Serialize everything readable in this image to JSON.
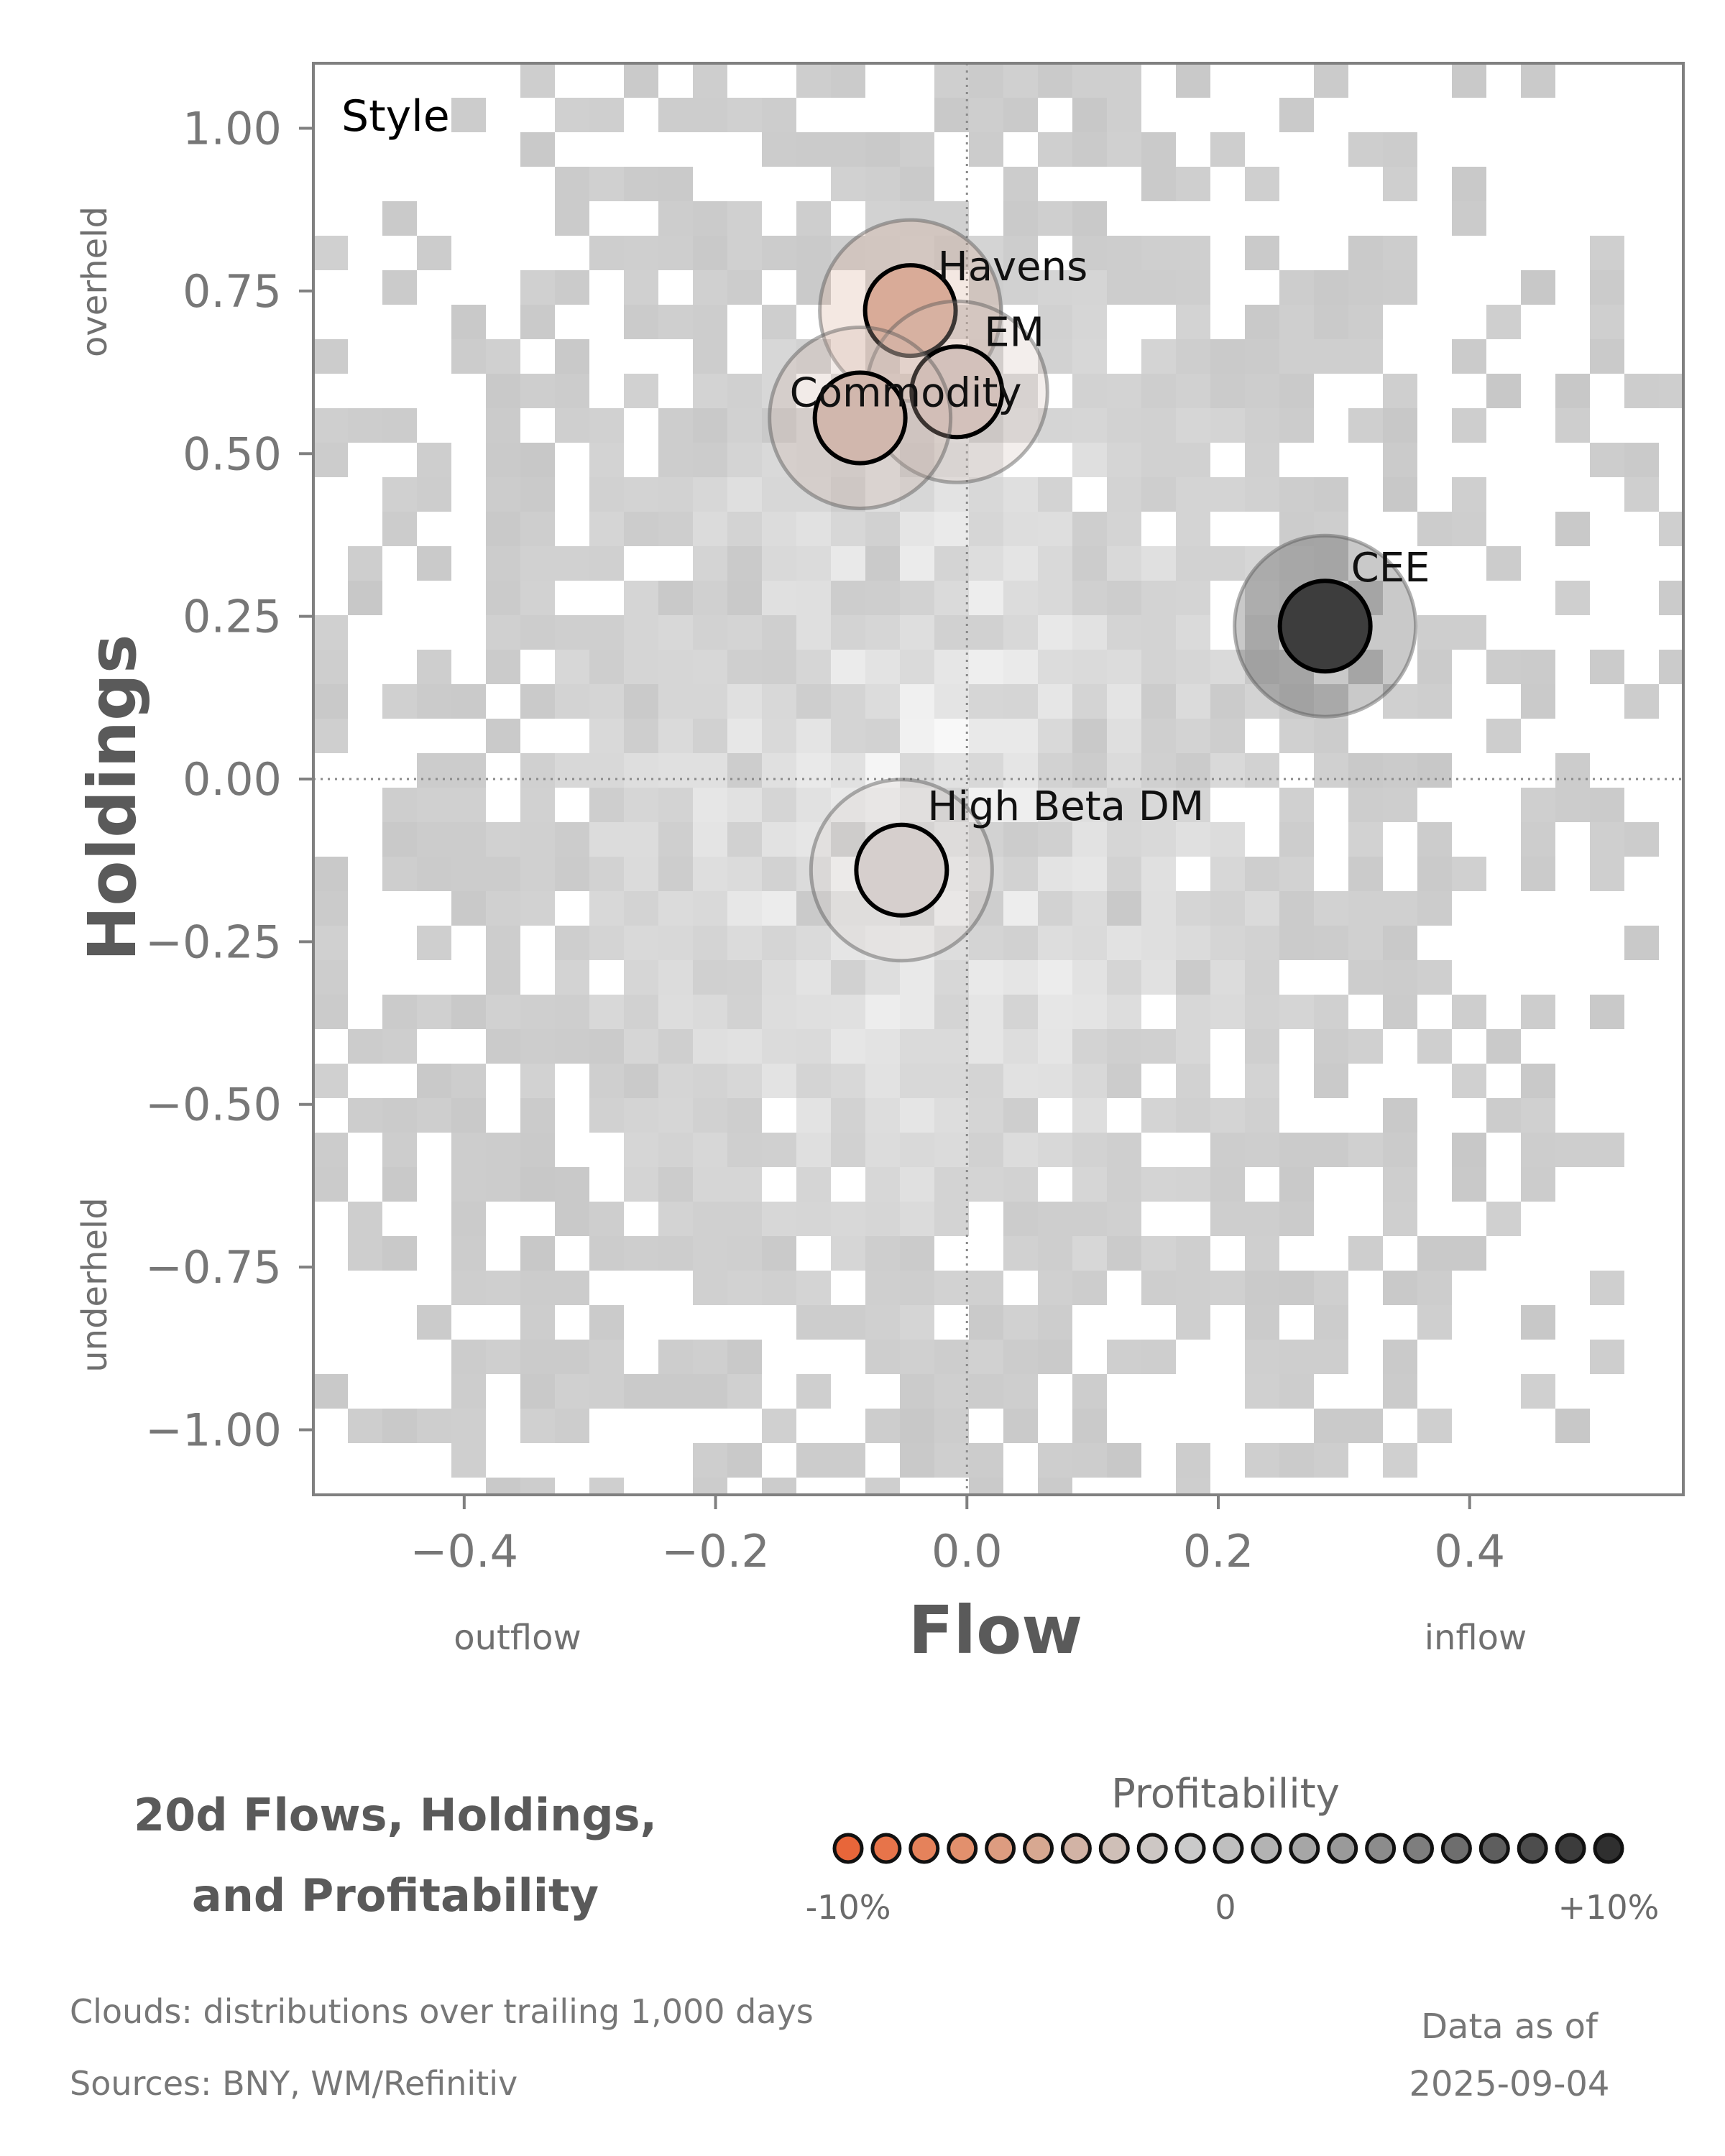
{
  "chart_data": {
    "type": "scatter",
    "panel_label": "Style",
    "xlabel": "Flow",
    "ylabel": "Holdings",
    "xlim": [
      -0.52,
      0.57
    ],
    "ylim": [
      -1.1,
      1.1
    ],
    "x_ticks": [
      "−0.4",
      "−0.2",
      "0.0",
      "0.2",
      "0.4"
    ],
    "x_tick_values": [
      -0.4,
      -0.2,
      0.0,
      0.2,
      0.4
    ],
    "y_ticks": [
      "1.00",
      "0.75",
      "0.50",
      "0.25",
      "0.00",
      "−0.25",
      "−0.50",
      "−0.75",
      "−1.00"
    ],
    "y_tick_values": [
      1.0,
      0.75,
      0.5,
      0.25,
      0.0,
      -0.25,
      -0.5,
      -0.75,
      -1.0
    ],
    "x_dir_labels": {
      "low": "outflow",
      "high": "inflow"
    },
    "y_dir_labels": {
      "high": "overheld",
      "low": "underheld"
    },
    "reference_lines": {
      "x": 0.0,
      "y": 0.0,
      "style": "dotted"
    },
    "background": "2D histogram cloud of trailing 1,000 day distributions (grayscale)",
    "points": [
      {
        "label": "Havens",
        "x": -0.045,
        "y": 0.72,
        "profitability": -0.05,
        "color": "#d9ab98"
      },
      {
        "label": "EM",
        "x": -0.008,
        "y": 0.595,
        "profitability": -0.01,
        "color": "#d3c1bb"
      },
      {
        "label": "Commodity",
        "x": -0.085,
        "y": 0.555,
        "profitability": -0.025,
        "color": "#d1b7ad"
      },
      {
        "label": "CEE",
        "x": 0.285,
        "y": 0.235,
        "profitability": 0.1,
        "color": "#3d3d3d"
      },
      {
        "label": "High Beta DM",
        "x": -0.052,
        "y": -0.14,
        "profitability": 0.0,
        "color": "#d6cfcd"
      }
    ]
  },
  "footer": {
    "title_line1": "20d Flows, Holdings,",
    "title_line2": "and Profitability",
    "legend_title": "Profitability",
    "legend_min": "-10%",
    "legend_mid": "0",
    "legend_max": "+10%",
    "legend_colors": [
      "#e8663a",
      "#e7744a",
      "#e5825b",
      "#e2906d",
      "#dd9c80",
      "#d7a891",
      "#d2b3a5",
      "#cfbfb7",
      "#cdc7c4",
      "#cacaca",
      "#bfbfbf",
      "#b3b3b3",
      "#a6a6a6",
      "#9a9a9a",
      "#8c8c8c",
      "#7e7e7e",
      "#6e6e6e",
      "#5e5e5e",
      "#4d4d4d",
      "#3c3c3c",
      "#2f2f2f"
    ],
    "clouds_note": "Clouds:  distributions over trailing 1,000 days",
    "sources_note": "Sources:  BNY, WM/Refinitiv",
    "asof_line1": "Data as of",
    "asof_line2": "2025-09-04"
  }
}
